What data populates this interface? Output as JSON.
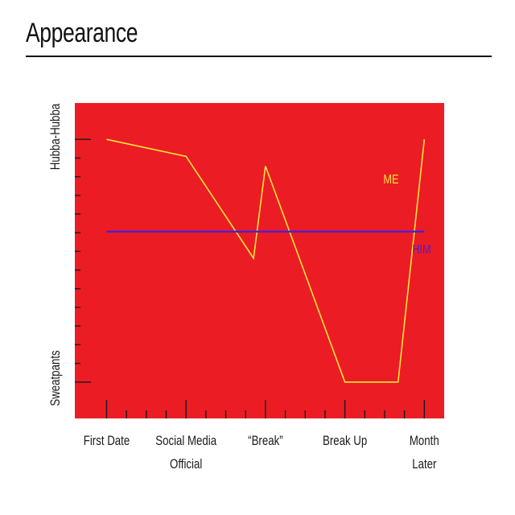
{
  "title": "Appearance",
  "chart_data": {
    "type": "line",
    "title": "Appearance",
    "xlabel": "",
    "ylabel": "",
    "x_ticks": [
      {
        "x": 0,
        "lines": [
          "First Date"
        ]
      },
      {
        "x": 1,
        "lines": [
          "Social Media",
          "Official"
        ]
      },
      {
        "x": 2,
        "lines": [
          "“Break”"
        ]
      },
      {
        "x": 3,
        "lines": [
          "Break Up"
        ]
      },
      {
        "x": 4,
        "lines": [
          "Month",
          "Later"
        ]
      }
    ],
    "y_ticks": [
      {
        "y": 1,
        "label": "Hubba-Hubba"
      },
      {
        "y": 0,
        "label": "Sweatpants"
      }
    ],
    "xlim": [
      -0.4,
      4.25
    ],
    "ylim": [
      -0.15,
      1.15
    ],
    "grid": false,
    "background_color": "#ec1c24",
    "series": [
      {
        "name": "ME",
        "color": "#f7e73a",
        "points": [
          {
            "x": 0,
            "y": 1.0
          },
          {
            "x": 1,
            "y": 0.93
          },
          {
            "x": 1.85,
            "y": 0.51
          },
          {
            "x": 2,
            "y": 0.89
          },
          {
            "x": 3,
            "y": 0.0
          },
          {
            "x": 3.67,
            "y": 0.0
          },
          {
            "x": 4,
            "y": 1.0
          }
        ]
      },
      {
        "name": "HIM",
        "color": "#4b1fd6",
        "points": [
          {
            "x": 0,
            "y": 0.62
          },
          {
            "x": 4,
            "y": 0.62
          }
        ]
      }
    ]
  }
}
